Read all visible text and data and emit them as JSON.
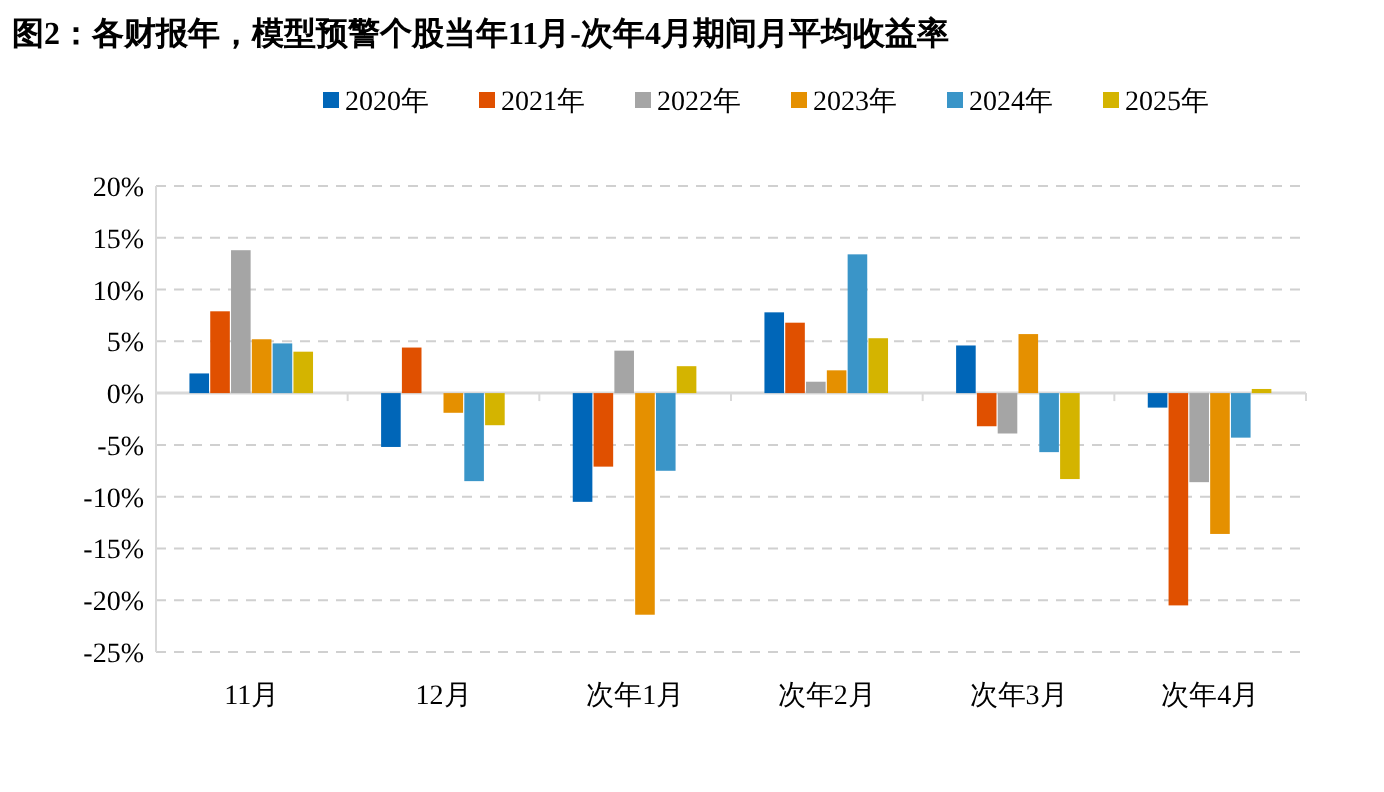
{
  "chart_data": {
    "type": "bar",
    "title": "图2：各财报年，模型预警个股当年11月-次年4月期间月平均收益率",
    "categories": [
      "11月",
      "12月",
      "次年1月",
      "次年2月",
      "次年3月",
      "次年4月"
    ],
    "series": [
      {
        "name": "2020年",
        "color": "#0066b8",
        "values": [
          1.9,
          -5.2,
          -10.5,
          7.8,
          4.6,
          -1.4
        ]
      },
      {
        "name": "2021年",
        "color": "#e05000",
        "values": [
          7.9,
          4.4,
          -7.1,
          6.8,
          -3.2,
          -20.5
        ]
      },
      {
        "name": "2022年",
        "color": "#a5a5a5",
        "values": [
          13.8,
          null,
          4.1,
          1.1,
          -3.9,
          -8.6
        ]
      },
      {
        "name": "2023年",
        "color": "#e59000",
        "values": [
          5.2,
          -1.9,
          -21.4,
          2.2,
          5.7,
          -13.6
        ]
      },
      {
        "name": "2024年",
        "color": "#3a95c8",
        "values": [
          4.8,
          -8.5,
          -7.5,
          13.4,
          -5.7,
          -4.3
        ]
      },
      {
        "name": "2025年",
        "color": "#d4b400",
        "values": [
          4.0,
          -3.1,
          2.6,
          5.3,
          -8.3,
          0.4
        ]
      }
    ],
    "ylim": [
      -25,
      20
    ],
    "yticks": [
      {
        "value": -25,
        "label": "-25%"
      },
      {
        "value": -20,
        "label": "-20%"
      },
      {
        "value": -15,
        "label": "-15%"
      },
      {
        "value": -10,
        "label": "-10%"
      },
      {
        "value": -5,
        "label": "-5%"
      },
      {
        "value": 0,
        "label": "0%"
      },
      {
        "value": 5,
        "label": "5%"
      },
      {
        "value": 10,
        "label": "10%"
      },
      {
        "value": 15,
        "label": "15%"
      },
      {
        "value": 20,
        "label": "20%"
      }
    ],
    "grid": "y",
    "legend": "top"
  }
}
